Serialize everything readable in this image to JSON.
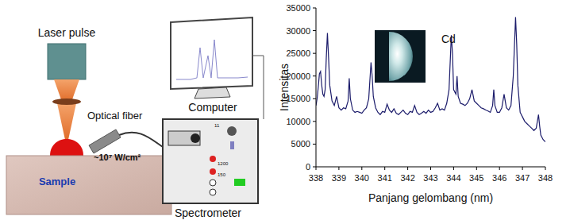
{
  "chart_data": {
    "type": "line",
    "x_label": "Panjang gelombang (nm)",
    "y_label": "Intensitas",
    "annotations": [
      "Cd"
    ],
    "color": "#1c1c6b",
    "grid": false,
    "xlim": [
      338,
      348
    ],
    "ylim": [
      0,
      35000
    ],
    "xticks": [
      338,
      339,
      340,
      341,
      342,
      343,
      344,
      345,
      346,
      347,
      348
    ],
    "yticks": [
      0,
      5000,
      10000,
      15000,
      20000,
      25000,
      30000,
      35000
    ],
    "x": [
      338.0,
      338.05,
      338.1,
      338.15,
      338.2,
      338.25,
      338.3,
      338.35,
      338.4,
      338.45,
      338.5,
      338.55,
      338.6,
      338.7,
      338.8,
      338.9,
      339.0,
      339.1,
      339.2,
      339.3,
      339.4,
      339.45,
      339.5,
      339.6,
      339.7,
      339.8,
      339.9,
      340.0,
      340.1,
      340.2,
      340.3,
      340.4,
      340.45,
      340.5,
      340.6,
      340.7,
      340.8,
      340.9,
      341.0,
      341.1,
      341.2,
      341.3,
      341.4,
      341.5,
      341.6,
      341.7,
      341.8,
      341.9,
      342.0,
      342.1,
      342.2,
      342.3,
      342.4,
      342.5,
      342.6,
      342.7,
      342.8,
      342.9,
      343.0,
      343.1,
      343.2,
      343.3,
      343.4,
      343.5,
      343.6,
      343.7,
      343.8,
      343.9,
      343.95,
      344.0,
      344.1,
      344.15,
      344.2,
      344.3,
      344.4,
      344.5,
      344.6,
      344.7,
      344.8,
      344.9,
      345.0,
      345.1,
      345.2,
      345.3,
      345.4,
      345.5,
      345.6,
      345.7,
      345.75,
      345.8,
      345.9,
      346.0,
      346.1,
      346.2,
      346.3,
      346.4,
      346.5,
      346.6,
      346.7,
      346.75,
      346.8,
      346.9,
      347.0,
      347.1,
      347.2,
      347.3,
      347.4,
      347.5,
      347.6,
      347.7,
      347.75,
      347.8,
      347.9,
      348.0
    ],
    "values": [
      13500,
      15000,
      17500,
      20500,
      21000,
      18000,
      16000,
      15500,
      17000,
      24000,
      29500,
      24000,
      18000,
      14500,
      13500,
      15500,
      13000,
      12500,
      13000,
      12800,
      14500,
      19500,
      15000,
      12500,
      12000,
      12200,
      12000,
      11800,
      12500,
      13000,
      15000,
      23000,
      20000,
      15500,
      13000,
      12000,
      11500,
      12200,
      12000,
      13800,
      12500,
      12000,
      12800,
      11800,
      11500,
      12000,
      12500,
      11800,
      11500,
      12200,
      12000,
      13500,
      12000,
      11500,
      11800,
      12200,
      11800,
      12500,
      12000,
      12200,
      13000,
      14000,
      12500,
      12800,
      12500,
      14000,
      17000,
      29000,
      25000,
      17000,
      16000,
      20000,
      15500,
      14000,
      13800,
      13500,
      14000,
      15000,
      17000,
      14500,
      14000,
      13500,
      13000,
      12800,
      12500,
      12300,
      12000,
      13500,
      17000,
      13500,
      12000,
      12000,
      13000,
      16000,
      13000,
      12500,
      13500,
      20000,
      33000,
      27000,
      18000,
      12000,
      11000,
      10000,
      9500,
      9000,
      8500,
      8000,
      8500,
      11500,
      9000,
      7000,
      6000,
      5500
    ]
  },
  "diagram": {
    "laser_label": "Laser pulse",
    "fiber_label": "Optical fiber",
    "intensity_label": "~10⁷ W/cm²",
    "sample_label": "Sample",
    "computer_label": "Computer",
    "spectrometer_label": "Spectrometer",
    "spectrometer_panel": [
      "11",
      "1200",
      "150"
    ]
  }
}
